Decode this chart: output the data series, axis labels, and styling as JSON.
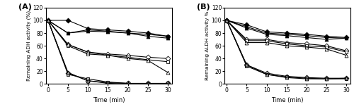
{
  "time": [
    0,
    5,
    10,
    15,
    20,
    25,
    30
  ],
  "ADH": {
    "SL13E2_50": [
      100,
      100,
      87,
      85,
      83,
      80,
      75
    ],
    "SL13E4_50": [
      100,
      80,
      85,
      83,
      80,
      78,
      75
    ],
    "SKU1108_50": [
      100,
      80,
      83,
      82,
      80,
      75,
      72
    ],
    "SL13E2_55": [
      100,
      62,
      50,
      47,
      45,
      42,
      40
    ],
    "SL13E4_55": [
      100,
      60,
      47,
      45,
      42,
      38,
      35
    ],
    "SKU1108_55": [
      100,
      62,
      50,
      45,
      40,
      37,
      18
    ],
    "SL13E2_60": [
      100,
      17,
      5,
      2,
      1,
      1,
      1
    ],
    "SL13E4_60": [
      100,
      15,
      8,
      3,
      1,
      0,
      1
    ],
    "SKU1108_60": [
      100,
      18,
      5,
      1,
      0,
      0,
      0
    ]
  },
  "ALDH": {
    "SL13E2_50": [
      100,
      93,
      82,
      80,
      78,
      75,
      73
    ],
    "SL13E4_50": [
      100,
      90,
      80,
      78,
      76,
      73,
      72
    ],
    "SKU1108_50": [
      100,
      88,
      78,
      76,
      73,
      70,
      72
    ],
    "SL13E2_55": [
      100,
      70,
      70,
      65,
      63,
      60,
      52
    ],
    "SL13E4_55": [
      100,
      68,
      68,
      63,
      60,
      58,
      50
    ],
    "SKU1108_55": [
      100,
      65,
      65,
      60,
      58,
      55,
      45
    ],
    "SL13E2_60": [
      100,
      30,
      17,
      12,
      10,
      9,
      9
    ],
    "SL13E4_60": [
      100,
      28,
      15,
      11,
      9,
      8,
      8
    ],
    "SKU1108_60": [
      100,
      30,
      15,
      10,
      8,
      8,
      9
    ]
  },
  "ylabel_A": "Remaining ADH activity (%)",
  "ylabel_B": "Remaining ALDH activity %",
  "xlabel": "Time (min)",
  "ylim": [
    0,
    120
  ],
  "yticks": [
    0,
    20,
    40,
    60,
    80,
    100,
    120
  ],
  "label_A": "(A)",
  "label_B": "(B)",
  "figsize": [
    5.0,
    1.55
  ],
  "dpi": 100
}
